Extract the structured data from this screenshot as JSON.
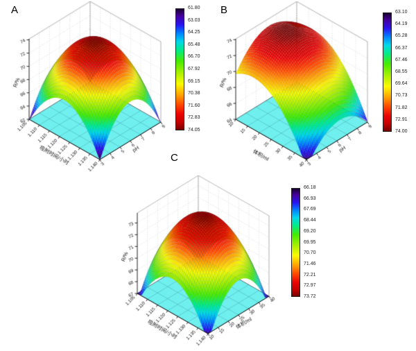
{
  "figure": {
    "background": "#ffffff",
    "floor_color": "#70efef"
  },
  "chart_data": [
    {
      "id": "A",
      "label": "A",
      "type": "surface3d",
      "model": "z = peak_z - curv_u*(u-center_u)^2 - curv_v*(v-center_v)^2, u/v normalized over axis ranges, clipped at z_axis.min",
      "x_axis": {
        "title": "吸附时间/小时",
        "ticks": [
          "1.105",
          "1.110",
          "1.115",
          "1.120",
          "1.125",
          "1.130",
          "1.135",
          "1.140"
        ],
        "min": 1.105,
        "max": 1.14
      },
      "y_axis": {
        "title": "pH",
        "ticks": [
          "3",
          "4",
          "5",
          "6",
          "7",
          "8",
          "9"
        ],
        "min": 3,
        "max": 9
      },
      "z_axis": {
        "title": "R/%",
        "ticks": [
          "74",
          "72",
          "70",
          "68",
          "66",
          "64",
          "62"
        ],
        "min": 62,
        "max": 74,
        "scale_max": 74.15
      },
      "surface": {
        "peak_z": 74.05,
        "min_z": 61.8,
        "center_u": 0.5,
        "center_v": 0.5,
        "curv_u": 24.5,
        "curv_v": 24.5
      },
      "colorbar": {
        "min": 61.8,
        "max": 74.05,
        "ticks": [
          "61.80",
          "63.03",
          "64.25",
          "65.48",
          "66.70",
          "67.92",
          "69.15",
          "70.38",
          "71.60",
          "72.83",
          "74.05"
        ]
      }
    },
    {
      "id": "B",
      "label": "B",
      "type": "surface3d",
      "model": "z = peak_z - curv_u*(u-center_u)^2 - curv_v*(v-center_v)^2, u/v normalized over axis ranges, clipped at z_axis.min",
      "x_axis": {
        "title": "体积/ml",
        "ticks": [
          "10",
          "15",
          "20",
          "25",
          "30",
          "35",
          "40"
        ],
        "min": 10,
        "max": 40
      },
      "y_axis": {
        "title": "pH",
        "ticks": [
          "3",
          "4",
          "5",
          "6",
          "7",
          "8",
          "9"
        ],
        "min": 3,
        "max": 9
      },
      "z_axis": {
        "title": "R/%",
        "ticks": [
          "74",
          "72",
          "70",
          "68",
          "66",
          "64"
        ],
        "min": 64,
        "max": 74,
        "scale_max": 74.1
      },
      "surface": {
        "peak_z": 74.0,
        "min_z": 63.1,
        "center_u": 0.25,
        "center_v": 0.55,
        "curv_u": 13.5,
        "curv_v": 11.5
      },
      "colorbar": {
        "min": 63.1,
        "max": 74.0,
        "ticks": [
          "63.10",
          "64.19",
          "65.28",
          "66.37",
          "67.46",
          "68.55",
          "69.64",
          "70.73",
          "71.82",
          "72.91",
          "74.00"
        ]
      }
    },
    {
      "id": "C",
      "label": "C",
      "type": "surface3d",
      "model": "z = peak_z - curv_u*(u-center_u)^2 - curv_v*(v-center_v)^2, u/v normalized over axis ranges, clipped at z_axis.min",
      "x_axis": {
        "title": "吸附时间/小时",
        "ticks": [
          "1.105",
          "1.110",
          "1.115",
          "1.120",
          "1.125",
          "1.130",
          "1.135",
          "1.140"
        ],
        "min": 1.105,
        "max": 1.14
      },
      "y_axis": {
        "title": "体积/ml",
        "ticks": [
          "10",
          "15",
          "20",
          "25",
          "30",
          "35",
          "40"
        ],
        "min": 10,
        "max": 40
      },
      "z_axis": {
        "title": "R/%",
        "ticks": [
          "73",
          "72",
          "71",
          "70",
          "69",
          "68",
          "67"
        ],
        "min": 67,
        "max": 73,
        "scale_max": 73.85
      },
      "surface": {
        "peak_z": 73.72,
        "min_z": 66.18,
        "center_u": 0.5,
        "center_v": 0.5,
        "curv_u": 15.08,
        "curv_v": 15.08
      },
      "colorbar": {
        "min": 66.18,
        "max": 73.72,
        "ticks": [
          "66.18",
          "66.93",
          "67.69",
          "68.44",
          "69.20",
          "69.95",
          "70.70",
          "71.46",
          "72.21",
          "72.97",
          "73.72"
        ]
      }
    }
  ]
}
